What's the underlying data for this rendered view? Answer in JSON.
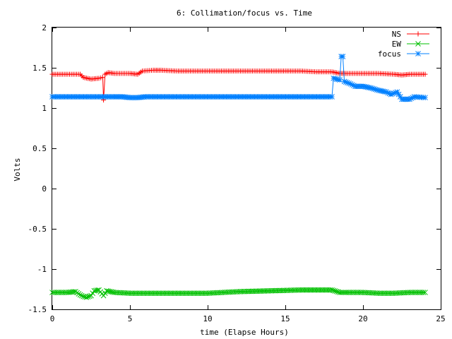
{
  "chart_data": {
    "type": "line",
    "title": "6: Collimation/focus vs. Time",
    "xlabel": "time (Elapse Hours)",
    "ylabel": "Volts",
    "xlim": [
      0,
      25
    ],
    "ylim": [
      -1.5,
      2
    ],
    "xticks": [
      0,
      5,
      10,
      15,
      20,
      25
    ],
    "xtick_labels": [
      "0",
      "5",
      "10",
      "15",
      "20",
      "25"
    ],
    "yticks": [
      -1.5,
      -1,
      -0.5,
      0,
      0.5,
      1,
      1.5,
      2
    ],
    "ytick_labels": [
      "-1.5",
      "-1",
      "-0.5",
      "0",
      "0.5",
      "1",
      "1.5",
      "2"
    ],
    "grid": false,
    "legend_position": "top-right",
    "series": [
      {
        "name": "NS",
        "color": "#ff0000",
        "marker": "plus",
        "x": [
          0,
          1,
          1.8,
          2.0,
          2.5,
          3.0,
          3.25,
          3.3,
          3.4,
          3.6,
          4.0,
          5.0,
          5.5,
          5.8,
          6.5,
          7.0,
          8.0,
          10.0,
          12.0,
          14.0,
          16.0,
          17.0,
          18.0,
          18.5,
          19.0,
          20.0,
          21.0,
          22.0,
          22.5,
          23.0,
          24.0
        ],
        "y": [
          1.42,
          1.42,
          1.42,
          1.38,
          1.36,
          1.37,
          1.38,
          1.1,
          1.42,
          1.44,
          1.43,
          1.43,
          1.42,
          1.46,
          1.47,
          1.47,
          1.46,
          1.46,
          1.46,
          1.46,
          1.46,
          1.45,
          1.45,
          1.43,
          1.43,
          1.43,
          1.43,
          1.42,
          1.41,
          1.42,
          1.42
        ]
      },
      {
        "name": "EW",
        "color": "#00c000",
        "marker": "cross",
        "x": [
          0,
          1,
          1.5,
          1.8,
          2.0,
          2.2,
          2.5,
          2.7,
          3.0,
          3.3,
          3.5,
          4.0,
          5.0,
          6.0,
          8.0,
          10.0,
          12.0,
          14.0,
          16.0,
          17.0,
          18.0,
          18.5,
          19.0,
          20.0,
          21.0,
          22.0,
          23.0,
          24.0
        ],
        "y": [
          -1.29,
          -1.29,
          -1.28,
          -1.32,
          -1.34,
          -1.35,
          -1.33,
          -1.27,
          -1.26,
          -1.33,
          -1.27,
          -1.29,
          -1.3,
          -1.3,
          -1.3,
          -1.3,
          -1.28,
          -1.27,
          -1.26,
          -1.26,
          -1.26,
          -1.29,
          -1.29,
          -1.29,
          -1.3,
          -1.3,
          -1.29,
          -1.29
        ]
      },
      {
        "name": "focus",
        "color": "#0080ff",
        "marker": "star",
        "x": [
          0,
          2,
          4,
          4.5,
          5.0,
          5.5,
          6.0,
          8.0,
          10.0,
          12.0,
          14.0,
          16.0,
          18.0,
          18.1,
          18.5,
          18.6,
          18.7,
          18.8,
          19.2,
          19.5,
          20.0,
          20.5,
          21.0,
          21.5,
          21.8,
          22.2,
          22.5,
          23.0,
          23.3,
          24.0
        ],
        "y": [
          1.14,
          1.14,
          1.14,
          1.14,
          1.13,
          1.13,
          1.14,
          1.14,
          1.14,
          1.14,
          1.14,
          1.14,
          1.14,
          1.37,
          1.35,
          1.64,
          1.64,
          1.33,
          1.3,
          1.27,
          1.27,
          1.25,
          1.22,
          1.2,
          1.17,
          1.2,
          1.11,
          1.11,
          1.14,
          1.13
        ]
      }
    ]
  }
}
